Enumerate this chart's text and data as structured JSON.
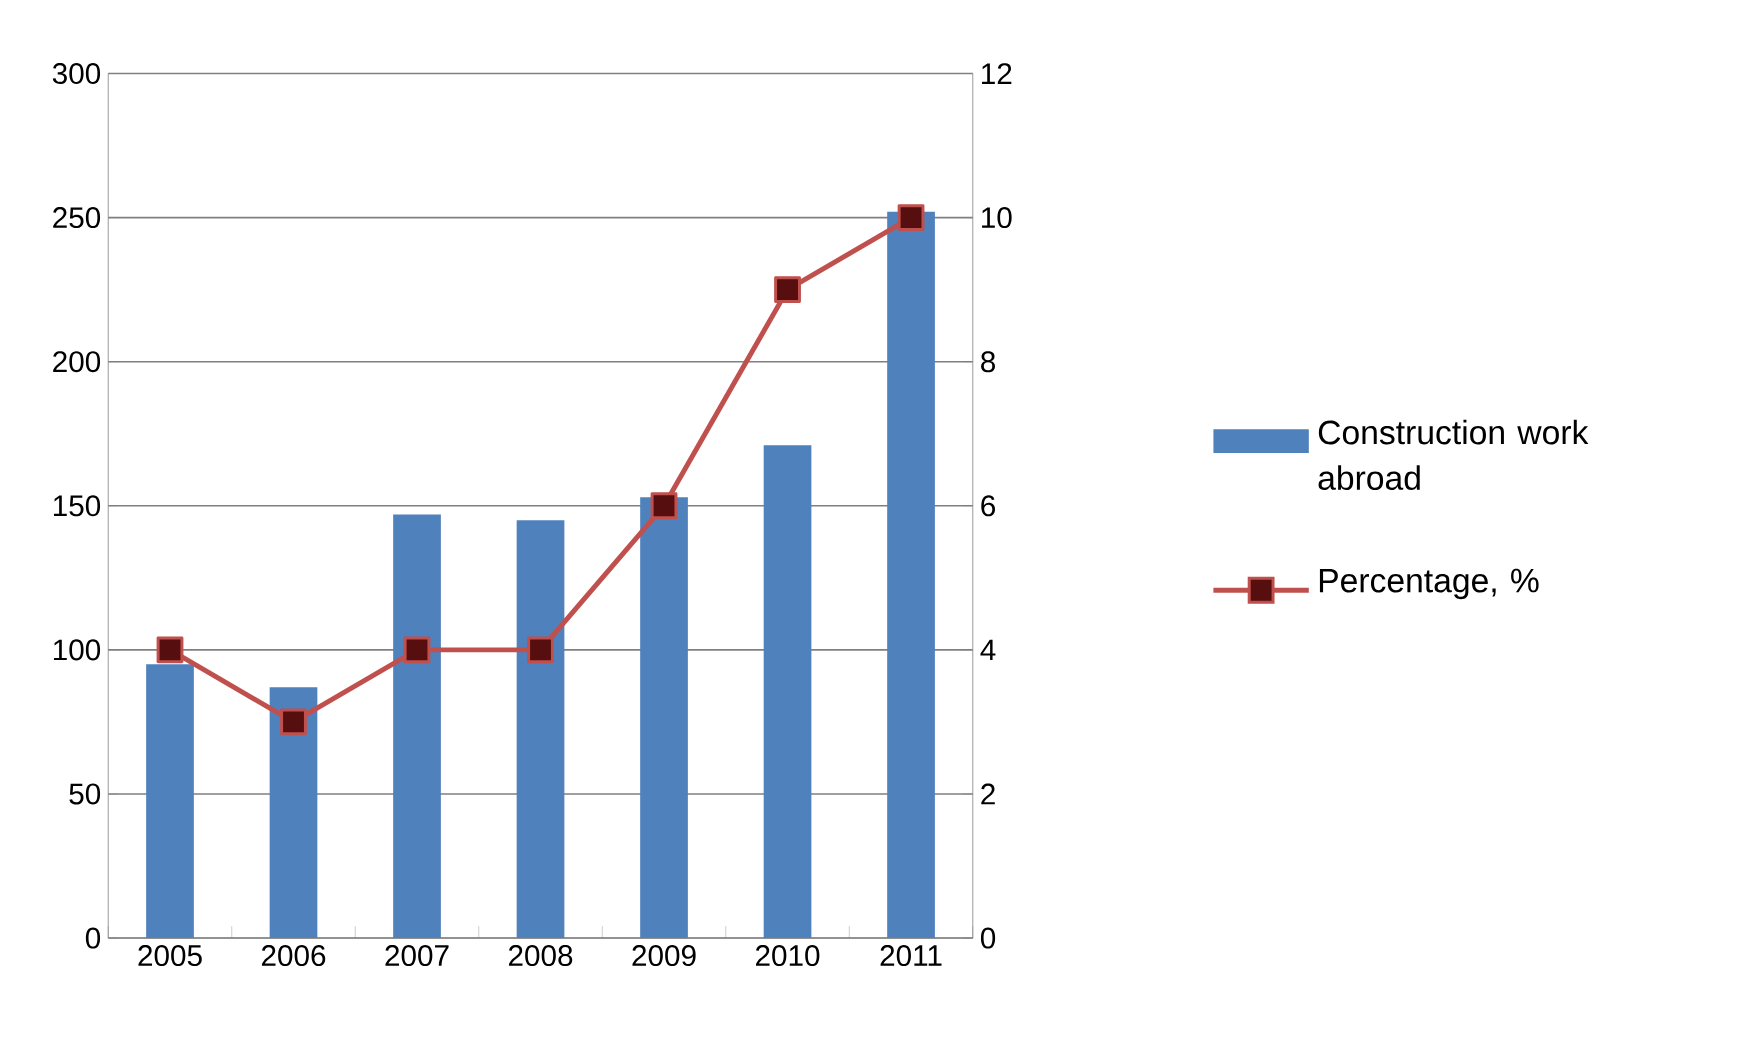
{
  "chart_data": {
    "type": "bar",
    "categories": [
      "2005",
      "2006",
      "2007",
      "2008",
      "2009",
      "2010",
      "2011"
    ],
    "series": [
      {
        "name": "Construction work abroad",
        "color": "#4f81bd",
        "values": [
          95,
          87,
          147,
          145,
          153,
          171,
          252
        ]
      },
      {
        "name": "Percentage, %",
        "type": "line",
        "axis": "y2",
        "color": "#c0504d",
        "marker": "square",
        "values": [
          4,
          3,
          4,
          4,
          6,
          9,
          10
        ]
      }
    ],
    "ylim": [
      0,
      300
    ],
    "yticks": [
      0,
      50,
      100,
      150,
      200,
      250,
      300
    ],
    "y2lim": [
      0,
      12
    ],
    "y2ticks": [
      0,
      2,
      4,
      6,
      8,
      10,
      12
    ],
    "grid": "y",
    "legend": "right"
  }
}
